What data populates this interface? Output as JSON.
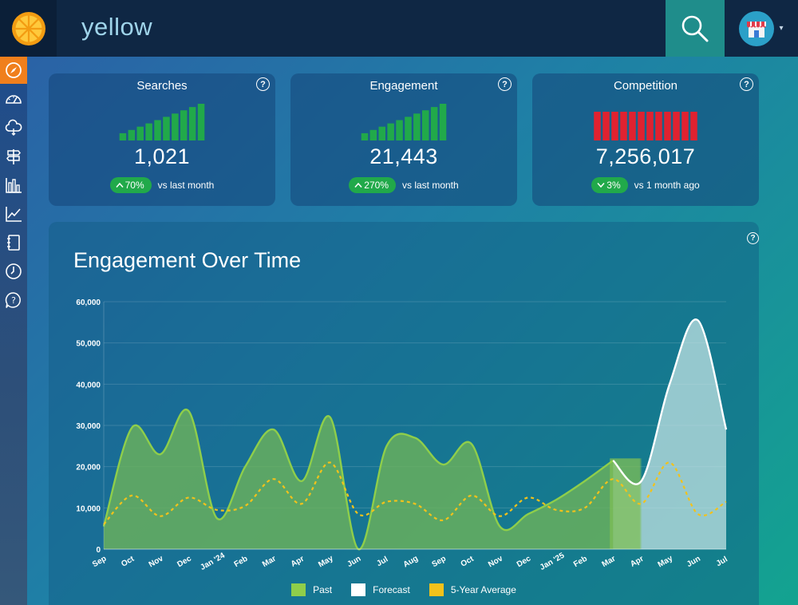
{
  "header": {
    "title": "yellow"
  },
  "colors": {
    "past": "#8fce4a",
    "forecast": "#ffffff",
    "average": "#f2c21b",
    "positive": "#21a94a",
    "competition": "#e02230",
    "nav_active": "#f07f1c"
  },
  "nav": {
    "items": [
      "compass-icon",
      "dashboard-icon",
      "cloud-icon",
      "signpost-icon",
      "bar-chart-icon",
      "line-chart-icon",
      "notebook-icon",
      "clock-icon",
      "help-bubble-icon"
    ]
  },
  "cards": [
    {
      "title": "Searches",
      "value": "1,021",
      "delta": "70%",
      "direction": "up",
      "comparison": "vs last month",
      "bar_color": "#21a94a",
      "bars": [
        1,
        2,
        3,
        4,
        5,
        6,
        7,
        8,
        9,
        10
      ]
    },
    {
      "title": "Engagement",
      "value": "21,443",
      "delta": "270%",
      "direction": "up",
      "comparison": "vs last month",
      "bar_color": "#21a94a",
      "bars": [
        1,
        2,
        3,
        4,
        5,
        6,
        7,
        8,
        9,
        10
      ]
    },
    {
      "title": "Competition",
      "value": "7,256,017",
      "delta": "3%",
      "direction": "down",
      "comparison": "vs 1 month ago",
      "bar_color": "#e02230",
      "bars": [
        10,
        10,
        10,
        10,
        10,
        10,
        10,
        10,
        10,
        10,
        10,
        10
      ]
    }
  ],
  "chart": {
    "title": "Engagement Over Time"
  },
  "chart_data": {
    "type": "area",
    "title": "Engagement Over Time",
    "categories": [
      "Sep",
      "Oct",
      "Nov",
      "Dec",
      "Jan '24",
      "Feb",
      "Mar",
      "Apr",
      "May",
      "Jun",
      "Jul",
      "Aug",
      "Sep",
      "Oct",
      "Nov",
      "Dec",
      "Jan '25",
      "Feb",
      "Mar",
      "Apr",
      "May",
      "Jun",
      "Jul"
    ],
    "ylim": [
      0,
      60000
    ],
    "yticks": [
      0,
      10000,
      20000,
      30000,
      40000,
      50000,
      60000
    ],
    "ytick_labels": [
      "0",
      "10,000",
      "20,000",
      "30,000",
      "40,000",
      "50,000",
      "60,000"
    ],
    "grid": true,
    "legend": "bottom",
    "series": [
      {
        "name": "Past",
        "values": [
          5500,
          29500,
          23000,
          33500,
          7500,
          20000,
          29000,
          16500,
          32000,
          0,
          25000,
          27000,
          20500,
          25500,
          5500,
          8500,
          12000,
          16500,
          21500,
          null,
          null,
          null,
          null
        ]
      },
      {
        "name": "Forecast",
        "values": [
          null,
          null,
          null,
          null,
          null,
          null,
          null,
          null,
          null,
          null,
          null,
          null,
          null,
          null,
          null,
          null,
          null,
          null,
          21500,
          16500,
          40000,
          55500,
          29000
        ]
      },
      {
        "name": "5-Year Average",
        "values": [
          6000,
          13000,
          8000,
          12500,
          9500,
          10500,
          17000,
          11000,
          21000,
          8500,
          11500,
          11000,
          7000,
          13000,
          8000,
          12500,
          9500,
          10000,
          17000,
          11000,
          21000,
          8500,
          11500
        ]
      }
    ]
  }
}
